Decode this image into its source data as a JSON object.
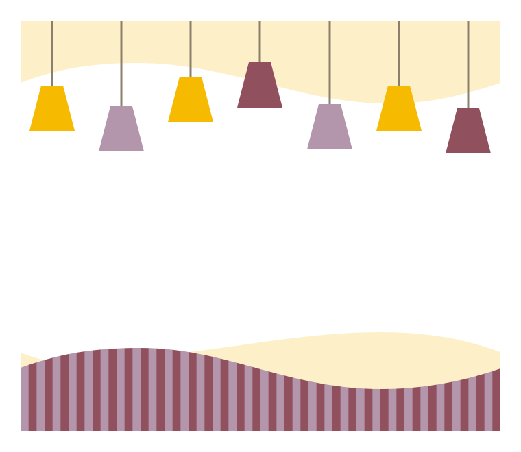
{
  "colors": {
    "background": "#FFFFFF",
    "cream": "#FDF0C9",
    "yellow": "#F6BB00",
    "mauve": "#B395AC",
    "plum": "#91505E",
    "cord": "#8C7F6C"
  },
  "lamps": [
    {
      "color": "yellow",
      "icon": "pendant-lamp-icon"
    },
    {
      "color": "mauve",
      "icon": "pendant-lamp-icon"
    },
    {
      "color": "yellow",
      "icon": "pendant-lamp-icon"
    },
    {
      "color": "plum",
      "icon": "pendant-lamp-icon"
    },
    {
      "color": "mauve",
      "icon": "pendant-lamp-icon"
    },
    {
      "color": "yellow",
      "icon": "pendant-lamp-icon"
    },
    {
      "color": "plum",
      "icon": "pendant-lamp-icon"
    }
  ]
}
